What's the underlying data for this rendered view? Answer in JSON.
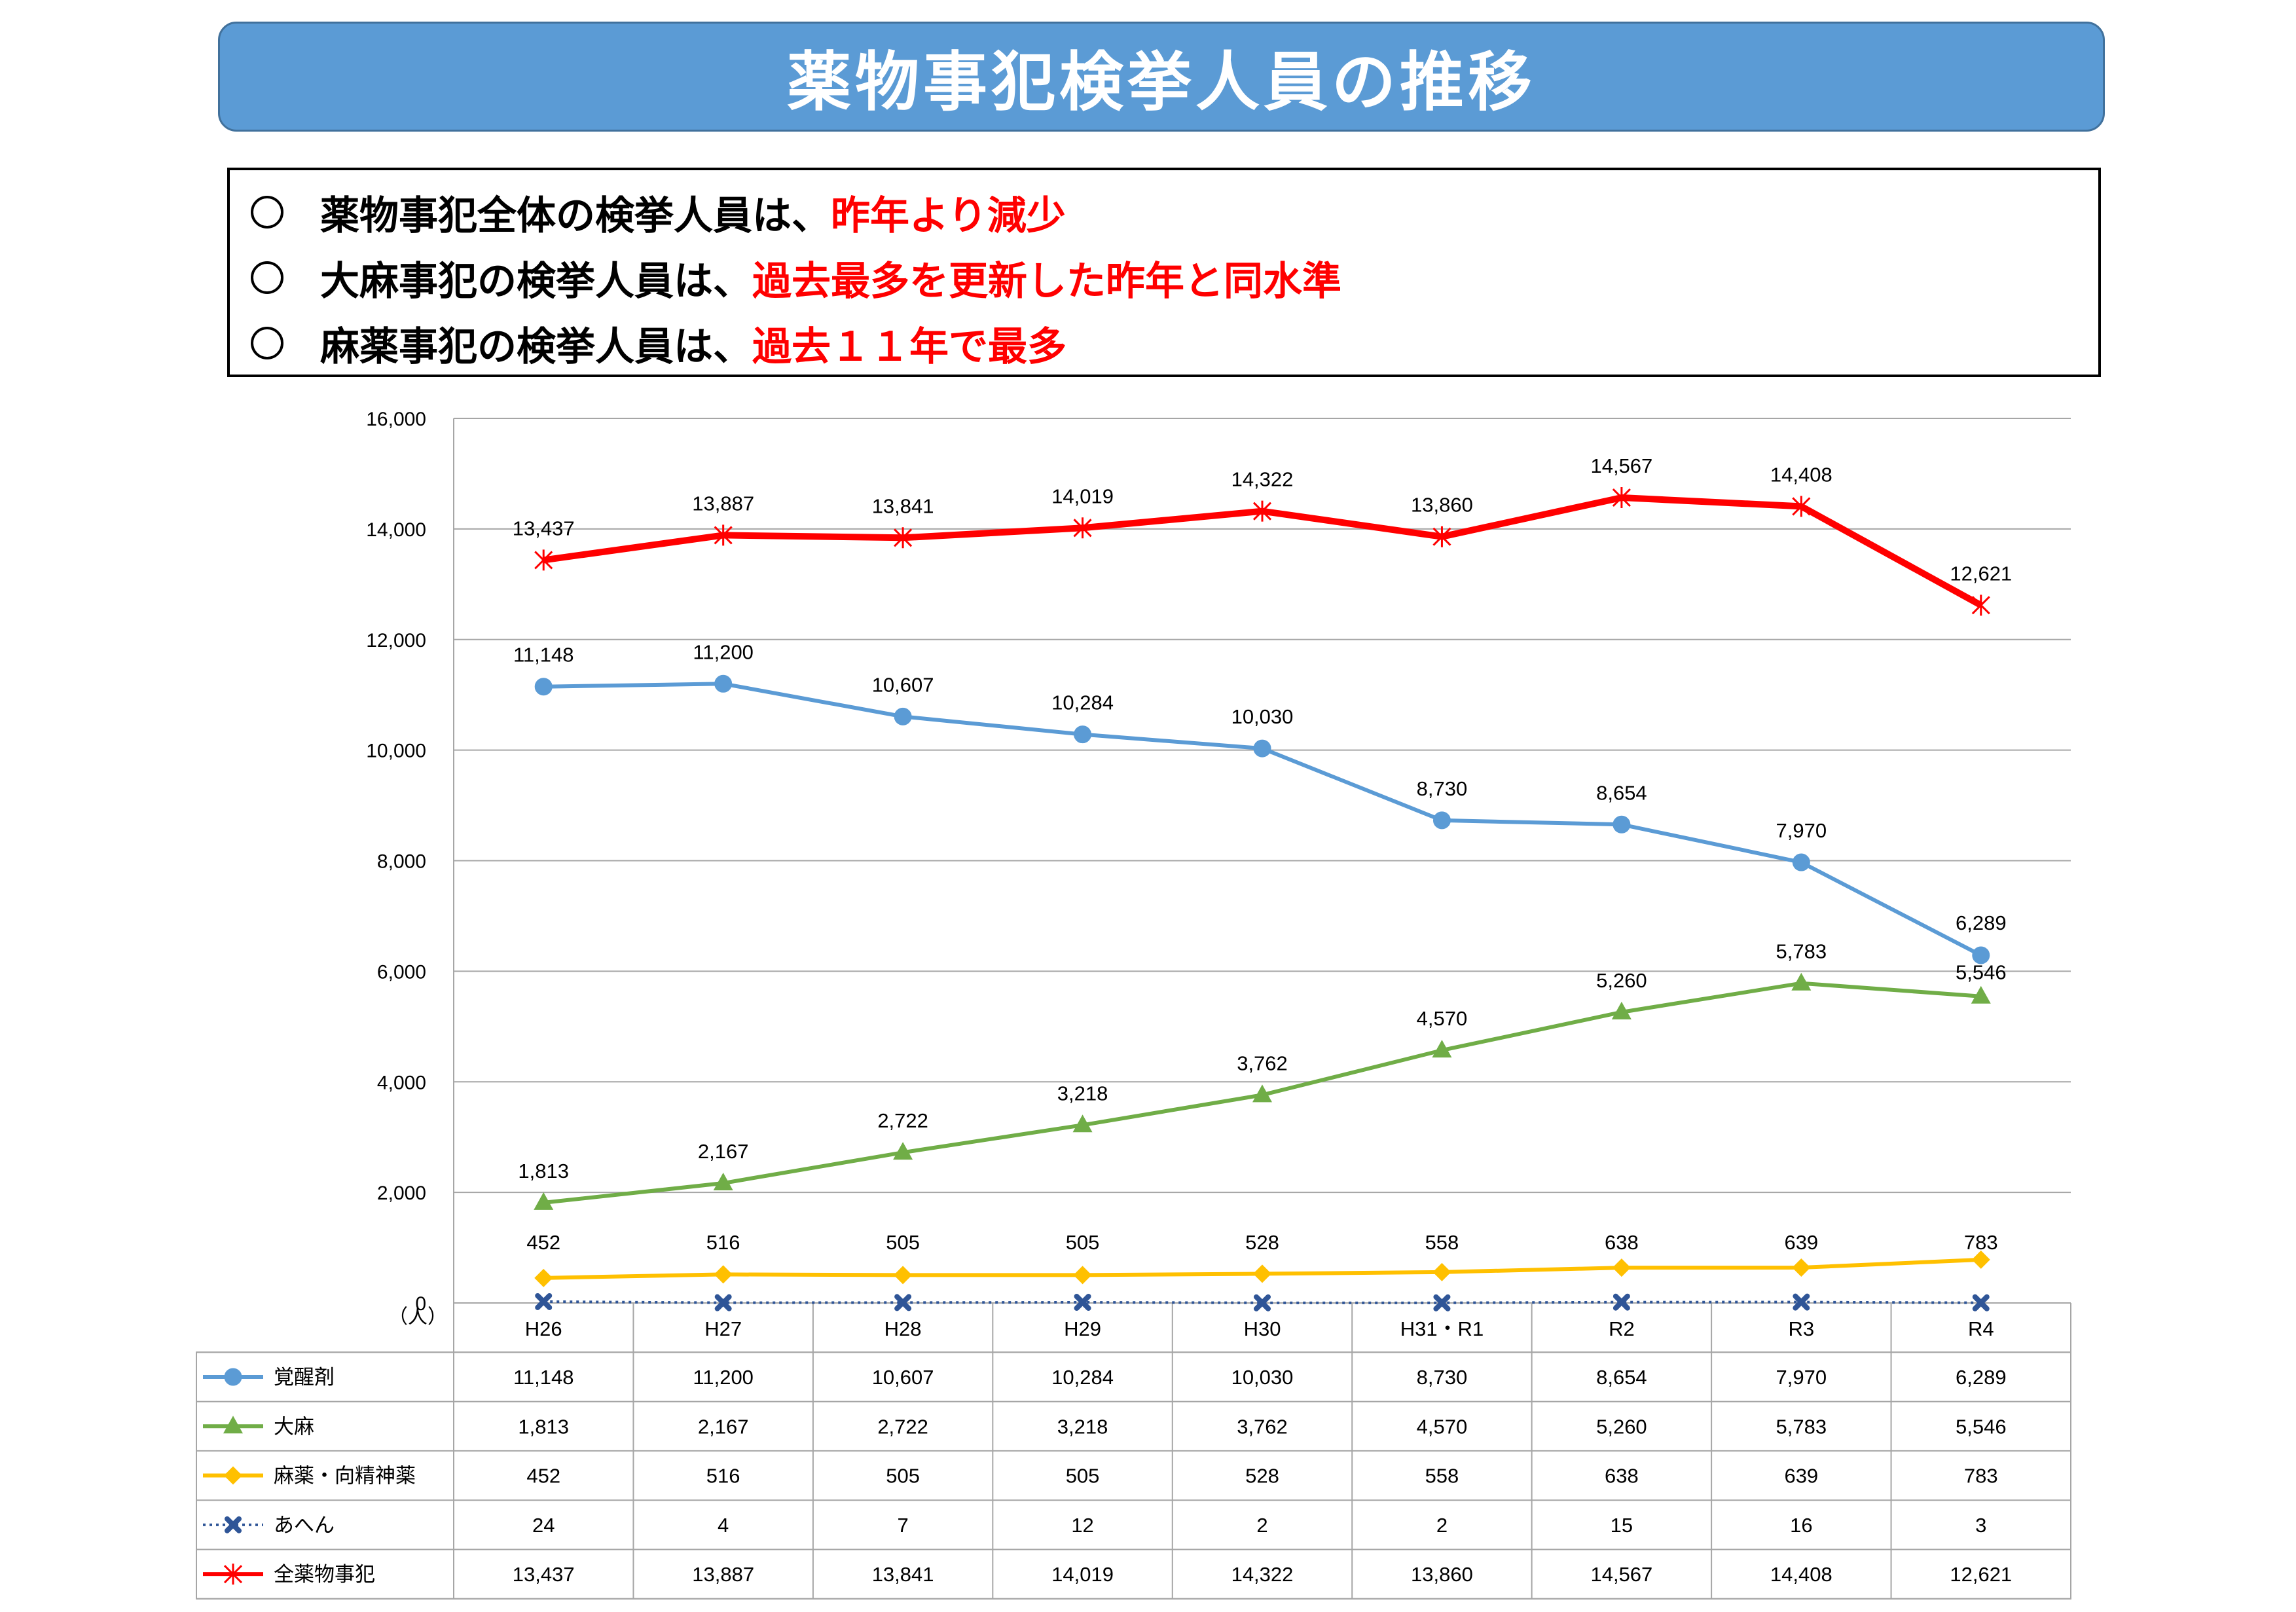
{
  "title": "薬物事犯検挙人員の推移",
  "summary": [
    {
      "text": "薬物事犯全体の検挙人員は、",
      "highlight": "昨年より減少"
    },
    {
      "text": "大麻事犯の検挙人員は、",
      "highlight": "過去最多を更新した昨年と同水準"
    },
    {
      "text": "麻薬事犯の検挙人員は、",
      "highlight": "過去１１年で最多"
    }
  ],
  "chart_data": {
    "type": "line",
    "unit_label": "（人）",
    "categories": [
      "H26",
      "H27",
      "H28",
      "H29",
      "H30",
      "H31・R1",
      "R2",
      "R3",
      "R4"
    ],
    "ylim": [
      0,
      16000
    ],
    "yticks": [
      "0",
      "2,000",
      "4,000",
      "6,000",
      "8,000",
      "10,000",
      "12,000",
      "14,000",
      "16,000"
    ],
    "grid": true,
    "series": [
      {
        "name": "覚醒剤",
        "color": "#5b9bd5",
        "marker": "circle",
        "values": [
          11148,
          11200,
          10607,
          10284,
          10030,
          8730,
          8654,
          7970,
          6289
        ],
        "labels": [
          "11,148",
          "11,200",
          "10,607",
          "10,284",
          "10,030",
          "8,730",
          "8,654",
          "7,970",
          "6,289"
        ]
      },
      {
        "name": "大麻",
        "color": "#70ad47",
        "marker": "triangle",
        "values": [
          1813,
          2167,
          2722,
          3218,
          3762,
          4570,
          5260,
          5783,
          5546
        ],
        "labels": [
          "1,813",
          "2,167",
          "2,722",
          "3,218",
          "3,762",
          "4,570",
          "5,260",
          "5,783",
          "5,546"
        ]
      },
      {
        "name": "麻薬・向精神薬",
        "color": "#ffc000",
        "marker": "diamond",
        "values": [
          452,
          516,
          505,
          505,
          528,
          558,
          638,
          639,
          783
        ],
        "labels": [
          "452",
          "516",
          "505",
          "505",
          "528",
          "558",
          "638",
          "639",
          "783"
        ]
      },
      {
        "name": "あへん",
        "color": "#2f5597",
        "marker": "x-bold",
        "dotted": true,
        "values": [
          24,
          4,
          7,
          12,
          2,
          2,
          15,
          16,
          3
        ],
        "labels": [
          "24",
          "4",
          "7",
          "12",
          "2",
          "2",
          "15",
          "16",
          "3"
        ]
      },
      {
        "name": "全薬物事犯",
        "color": "#ff0000",
        "marker": "star",
        "values": [
          13437,
          13887,
          13841,
          14019,
          14322,
          13860,
          14567,
          14408,
          12621
        ],
        "labels": [
          "13,437",
          "13,887",
          "13,841",
          "14,019",
          "14,322",
          "13,860",
          "14,567",
          "14,408",
          "12,621"
        ]
      }
    ]
  }
}
